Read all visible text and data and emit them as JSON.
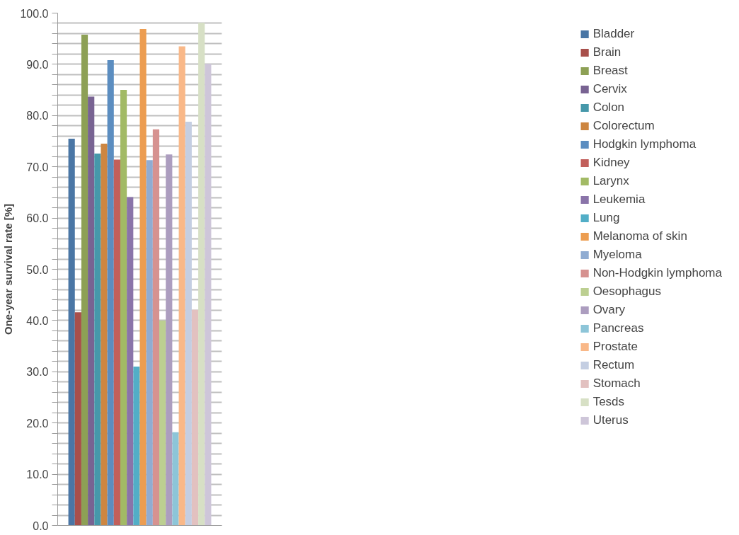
{
  "chart_data": {
    "type": "bar",
    "ylabel": "One-year survival rate [%]",
    "categories": [
      null
    ],
    "series": [
      {
        "name": "Bladder",
        "color": "#4a76a5",
        "values": [
          75.5
        ]
      },
      {
        "name": "Brain",
        "color": "#a84f4b",
        "values": [
          41.6
        ]
      },
      {
        "name": "Breast",
        "color": "#8da055",
        "values": [
          95.8
        ]
      },
      {
        "name": "Cervix",
        "color": "#786392",
        "values": [
          83.7
        ]
      },
      {
        "name": "Colon",
        "color": "#4698aa",
        "values": [
          72.6
        ]
      },
      {
        "name": "Colorectum",
        "color": "#cd8641",
        "values": [
          74.5
        ]
      },
      {
        "name": "Hodgkin lymphoma",
        "color": "#5b8dc0",
        "values": [
          90.8
        ]
      },
      {
        "name": "Kidney",
        "color": "#c25f5b",
        "values": [
          71.4
        ]
      },
      {
        "name": "Larynx",
        "color": "#a2ba65",
        "values": [
          85.0
        ]
      },
      {
        "name": "Leukemia",
        "color": "#8a74a9",
        "values": [
          64.1
        ]
      },
      {
        "name": "Lung",
        "color": "#52aec7",
        "values": [
          31.0
        ]
      },
      {
        "name": "Melanoma of skin",
        "color": "#ec9d51",
        "values": [
          96.9
        ]
      },
      {
        "name": "Myeloma",
        "color": "#90acd2",
        "values": [
          71.3
        ]
      },
      {
        "name": "Non-Hodgkin lymphoma",
        "color": "#d69290",
        "values": [
          77.3
        ]
      },
      {
        "name": "Oesophagus",
        "color": "#bccf91",
        "values": [
          40.0
        ]
      },
      {
        "name": "Ovary",
        "color": "#ac9dbf",
        "values": [
          72.4
        ]
      },
      {
        "name": "Pancreas",
        "color": "#8dc5d8",
        "values": [
          18.2
        ]
      },
      {
        "name": "Prostate",
        "color": "#f9b888",
        "values": [
          93.5
        ]
      },
      {
        "name": "Rectum",
        "color": "#c4cee2",
        "values": [
          78.8
        ]
      },
      {
        "name": "Stomach",
        "color": "#e2c1c0",
        "values": [
          42.1
        ]
      },
      {
        "name": "Tesds",
        "color": "#d7e0c5",
        "values": [
          98.1
        ]
      },
      {
        "name": "Uterus",
        "color": "#cec6d9",
        "values": [
          90.1
        ]
      }
    ],
    "ylim": [
      0,
      100
    ],
    "yticks": [
      "0.0",
      {
        "value": 2,
        "label": null
      },
      {
        "value": 4,
        "label": null
      },
      {
        "value": 6,
        "label": null
      },
      {
        "value": 8,
        "label": null
      },
      {
        "value": 10,
        "label": "10.0"
      },
      {
        "value": 12,
        "label": null
      },
      {
        "value": 14,
        "label": null
      },
      {
        "value": 16,
        "label": null
      },
      {
        "value": 18,
        "label": null
      },
      {
        "value": 20,
        "label": "20.0"
      },
      {
        "value": 22,
        "label": null
      },
      {
        "value": 24,
        "label": null
      },
      {
        "value": 26,
        "label": null
      },
      {
        "value": 28,
        "label": null
      },
      {
        "value": 30,
        "label": "30.0"
      },
      {
        "value": 32,
        "label": null
      },
      {
        "value": 34,
        "label": null
      },
      {
        "value": 36,
        "label": null
      },
      {
        "value": 38,
        "label": null
      },
      {
        "value": 40,
        "label": "40.0"
      },
      {
        "value": 42,
        "label": null
      },
      {
        "value": 44,
        "label": null
      },
      {
        "value": 46,
        "label": null
      },
      {
        "value": 48,
        "label": null
      },
      {
        "value": 50,
        "label": "50.0"
      },
      {
        "value": 52,
        "label": null
      },
      {
        "value": 54,
        "label": null
      },
      {
        "value": 56,
        "label": null
      },
      {
        "value": 58,
        "label": null
      },
      {
        "value": 60,
        "label": "60.0"
      },
      {
        "value": 62,
        "label": null
      },
      {
        "value": 64,
        "label": null
      },
      {
        "value": 66,
        "label": null
      },
      {
        "value": 68,
        "label": null
      },
      {
        "value": 70,
        "label": "70.0"
      },
      {
        "value": 72,
        "label": null
      },
      {
        "value": 74,
        "label": null
      },
      {
        "value": 76,
        "label": null
      },
      {
        "value": 78,
        "label": null
      },
      {
        "value": 80,
        "label": "80.0"
      },
      {
        "value": 82,
        "label": null
      },
      {
        "value": 84,
        "label": null
      },
      {
        "value": 86,
        "label": null
      },
      {
        "value": 88,
        "label": null
      },
      {
        "value": 90,
        "label": "90.0"
      },
      {
        "value": 92,
        "label": null
      },
      {
        "value": 94,
        "label": null
      },
      {
        "value": 96,
        "label": null
      },
      {
        "value": 98,
        "label": null
      },
      {
        "value": 100,
        "label": "100.0"
      }
    ],
    "grid": "y",
    "legend": "right"
  }
}
